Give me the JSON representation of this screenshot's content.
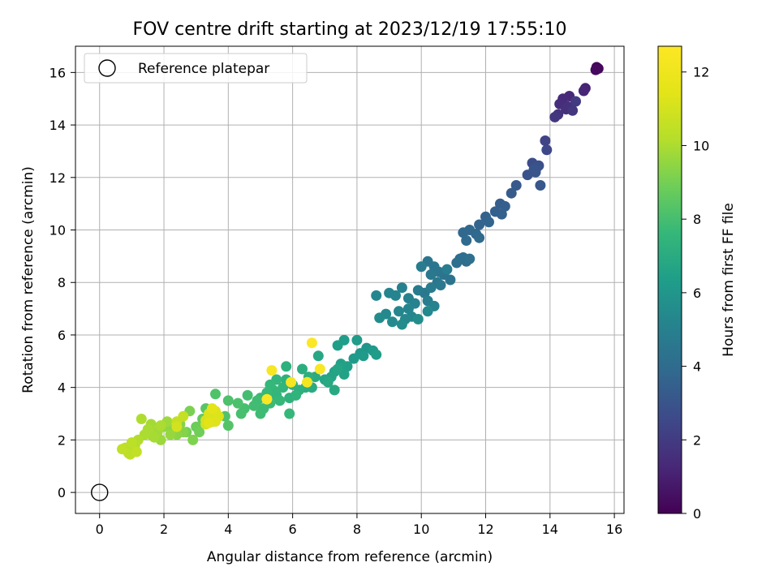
{
  "chart_data": {
    "type": "scatter",
    "title": "FOV centre drift starting at 2023/12/19 17:55:10",
    "xlabel": "Angular distance from reference (arcmin)",
    "ylabel": "Rotation from reference (arcmin)",
    "xlim": [
      -0.75,
      16.3
    ],
    "ylim": [
      -0.8,
      17.0
    ],
    "xticks": [
      0,
      2,
      4,
      6,
      8,
      10,
      12,
      14,
      16
    ],
    "yticks": [
      0,
      2,
      4,
      6,
      8,
      10,
      12,
      14,
      16
    ],
    "grid": true,
    "colormap": "viridis",
    "colorbar": {
      "label": "Hours from first FF file",
      "range": [
        0,
        12.7
      ],
      "ticks": [
        0,
        2,
        4,
        6,
        8,
        10,
        12
      ]
    },
    "reference": {
      "x": 0,
      "y": 0,
      "label": "Reference platepar"
    },
    "legend_location": "upper-left",
    "points": [
      [
        15.45,
        16.2,
        0.1
      ],
      [
        15.5,
        16.15,
        0.2
      ],
      [
        15.42,
        16.1,
        0.3
      ],
      [
        15.1,
        15.4,
        1.1
      ],
      [
        15.05,
        15.3,
        1.2
      ],
      [
        14.6,
        15.1,
        1.3
      ],
      [
        14.4,
        15.0,
        1.4
      ],
      [
        14.3,
        14.8,
        1.5
      ],
      [
        14.5,
        14.6,
        1.6
      ],
      [
        14.25,
        14.4,
        1.7
      ],
      [
        14.7,
        14.55,
        1.8
      ],
      [
        14.15,
        14.3,
        1.9
      ],
      [
        14.8,
        14.9,
        2.0
      ],
      [
        14.55,
        14.7,
        1.6
      ],
      [
        13.85,
        13.4,
        2.3
      ],
      [
        13.9,
        13.05,
        2.5
      ],
      [
        13.45,
        12.55,
        2.7
      ],
      [
        13.65,
        12.45,
        2.8
      ],
      [
        13.3,
        12.1,
        2.9
      ],
      [
        13.55,
        12.2,
        3.0
      ],
      [
        13.7,
        11.7,
        3.1
      ],
      [
        12.95,
        11.7,
        3.2
      ],
      [
        13.6,
        12.4,
        2.9
      ],
      [
        13.5,
        12.3,
        3.0
      ],
      [
        12.8,
        11.4,
        3.3
      ],
      [
        12.45,
        11.0,
        3.4
      ],
      [
        12.6,
        10.9,
        3.45
      ],
      [
        12.3,
        10.7,
        3.5
      ],
      [
        12.5,
        10.6,
        3.55
      ],
      [
        12.0,
        10.5,
        3.6
      ],
      [
        11.8,
        10.2,
        3.65
      ],
      [
        12.1,
        10.3,
        3.7
      ],
      [
        11.5,
        10.0,
        3.75
      ],
      [
        11.3,
        9.9,
        3.8
      ],
      [
        11.7,
        9.85,
        3.85
      ],
      [
        11.4,
        9.6,
        3.9
      ],
      [
        11.8,
        9.7,
        3.95
      ],
      [
        11.2,
        8.9,
        4.0
      ],
      [
        11.4,
        8.8,
        4.05
      ],
      [
        11.3,
        8.95,
        4.1
      ],
      [
        11.1,
        8.75,
        4.15
      ],
      [
        11.5,
        8.9,
        4.2
      ],
      [
        10.7,
        8.3,
        4.3
      ],
      [
        10.9,
        8.1,
        4.4
      ],
      [
        10.2,
        8.8,
        4.5
      ],
      [
        10.4,
        8.6,
        4.5
      ],
      [
        10.5,
        8.0,
        4.55
      ],
      [
        10.1,
        7.6,
        4.6
      ],
      [
        10.6,
        7.9,
        4.65
      ],
      [
        9.9,
        7.7,
        4.7
      ],
      [
        10.3,
        7.8,
        4.75
      ],
      [
        10.0,
        8.6,
        4.8
      ],
      [
        10.8,
        8.5,
        4.85
      ],
      [
        10.2,
        7.3,
        4.9
      ],
      [
        9.6,
        7.4,
        5.0
      ],
      [
        9.4,
        7.8,
        5.05
      ],
      [
        9.8,
        7.2,
        5.1
      ],
      [
        9.2,
        7.5,
        5.15
      ],
      [
        9.0,
        7.6,
        5.2
      ],
      [
        9.3,
        6.9,
        5.25
      ],
      [
        9.7,
        6.7,
        5.3
      ],
      [
        9.5,
        6.6,
        5.35
      ],
      [
        8.9,
        6.8,
        5.4
      ],
      [
        9.1,
        6.5,
        5.45
      ],
      [
        8.7,
        6.65,
        5.5
      ],
      [
        9.4,
        6.4,
        5.55
      ],
      [
        9.9,
        6.6,
        5.6
      ],
      [
        10.2,
        6.9,
        5.4
      ],
      [
        10.4,
        7.1,
        5.1
      ],
      [
        8.6,
        7.5,
        5.3
      ],
      [
        10.3,
        8.3,
        4.6
      ],
      [
        10.55,
        8.4,
        4.5
      ],
      [
        9.6,
        7.0,
        5.2
      ],
      [
        8.3,
        5.5,
        6.0
      ],
      [
        8.1,
        5.3,
        6.1
      ],
      [
        8.5,
        5.4,
        6.15
      ],
      [
        7.9,
        5.1,
        6.2
      ],
      [
        8.0,
        5.8,
        6.25
      ],
      [
        8.6,
        5.25,
        6.3
      ],
      [
        7.6,
        5.8,
        6.35
      ],
      [
        7.4,
        5.6,
        6.4
      ],
      [
        7.7,
        4.8,
        6.45
      ],
      [
        7.5,
        4.9,
        6.5
      ],
      [
        7.3,
        4.6,
        6.55
      ],
      [
        7.6,
        4.5,
        6.6
      ],
      [
        7.2,
        4.4,
        6.65
      ],
      [
        7.4,
        4.7,
        6.7
      ],
      [
        7.0,
        4.3,
        6.75
      ],
      [
        6.8,
        5.2,
        6.8
      ],
      [
        7.1,
        4.2,
        6.85
      ],
      [
        7.3,
        3.9,
        6.9
      ],
      [
        6.7,
        4.4,
        6.95
      ],
      [
        8.2,
        5.2,
        6.2
      ],
      [
        6.6,
        4.0,
        7.0
      ],
      [
        6.3,
        4.7,
        7.1
      ],
      [
        6.5,
        4.4,
        7.15
      ],
      [
        6.2,
        3.9,
        7.2
      ],
      [
        6.0,
        4.1,
        7.25
      ],
      [
        5.8,
        4.3,
        7.3
      ],
      [
        5.9,
        3.6,
        7.35
      ],
      [
        6.1,
        3.7,
        7.4
      ],
      [
        5.7,
        4.0,
        7.45
      ],
      [
        5.5,
        4.3,
        7.5
      ],
      [
        5.4,
        3.9,
        7.55
      ],
      [
        5.6,
        3.5,
        7.6
      ],
      [
        5.2,
        3.8,
        7.65
      ],
      [
        5.0,
        3.6,
        7.7
      ],
      [
        5.3,
        3.4,
        7.75
      ],
      [
        5.1,
        3.2,
        7.8
      ],
      [
        4.9,
        3.5,
        7.85
      ],
      [
        4.8,
        3.3,
        7.9
      ],
      [
        4.6,
        3.7,
        7.95
      ],
      [
        4.5,
        3.2,
        8.0
      ],
      [
        4.4,
        3.0,
        8.05
      ],
      [
        4.3,
        3.4,
        8.1
      ],
      [
        4.0,
        3.5,
        8.15
      ],
      [
        3.6,
        3.75,
        8.2
      ],
      [
        3.9,
        2.9,
        8.25
      ],
      [
        4.0,
        2.55,
        8.3
      ],
      [
        5.8,
        4.8,
        7.3
      ],
      [
        5.9,
        3.0,
        7.6
      ],
      [
        5.0,
        3.0,
        7.8
      ],
      [
        6.4,
        4.0,
        7.1
      ],
      [
        5.5,
        3.7,
        7.5
      ],
      [
        5.3,
        4.1,
        7.6
      ],
      [
        3.3,
        3.2,
        8.4
      ],
      [
        3.4,
        3.0,
        8.5
      ],
      [
        3.2,
        2.8,
        8.6
      ],
      [
        3.5,
        2.7,
        8.7
      ],
      [
        3.0,
        2.5,
        8.8
      ],
      [
        3.1,
        2.3,
        8.9
      ],
      [
        2.7,
        2.3,
        9.0
      ],
      [
        2.8,
        3.1,
        9.1
      ],
      [
        2.9,
        2.0,
        9.2
      ],
      [
        2.5,
        2.6,
        9.3
      ],
      [
        2.3,
        2.4,
        9.4
      ],
      [
        2.0,
        2.5,
        9.5
      ],
      [
        2.2,
        2.2,
        9.6
      ],
      [
        1.9,
        2.0,
        9.7
      ],
      [
        2.1,
        2.7,
        9.75
      ],
      [
        1.8,
        2.3,
        9.8
      ],
      [
        1.6,
        2.6,
        9.85
      ],
      [
        1.7,
        2.1,
        9.9
      ],
      [
        1.5,
        2.4,
        9.95
      ],
      [
        1.4,
        2.2,
        10.0
      ],
      [
        1.3,
        2.8,
        10.05
      ],
      [
        1.2,
        2.0,
        10.1
      ],
      [
        1.1,
        1.8,
        10.15
      ],
      [
        1.0,
        1.6,
        10.2
      ],
      [
        0.9,
        1.5,
        10.25
      ],
      [
        0.8,
        1.7,
        10.3
      ],
      [
        1.0,
        1.9,
        10.35
      ],
      [
        0.95,
        1.45,
        10.4
      ],
      [
        0.7,
        1.65,
        10.45
      ],
      [
        1.15,
        1.55,
        10.5
      ],
      [
        1.9,
        2.55,
        10.0
      ],
      [
        2.4,
        2.2,
        9.4
      ],
      [
        1.6,
        2.2,
        9.9
      ],
      [
        2.6,
        2.9,
        10.6
      ],
      [
        2.4,
        2.7,
        10.6
      ],
      [
        2.6,
        2.3,
        9.3
      ],
      [
        3.3,
        2.6,
        11.0
      ],
      [
        3.5,
        2.8,
        11.1
      ],
      [
        3.4,
        3.0,
        11.2
      ],
      [
        3.6,
        3.1,
        11.3
      ],
      [
        3.7,
        2.9,
        11.2
      ],
      [
        3.3,
        2.75,
        11.1
      ],
      [
        3.4,
        2.65,
        11.4
      ],
      [
        3.5,
        3.2,
        11.5
      ],
      [
        3.6,
        2.7,
        11.3
      ],
      [
        2.4,
        2.5,
        11.0
      ],
      [
        5.2,
        3.55,
        12.5
      ],
      [
        5.35,
        4.65,
        12.4
      ],
      [
        5.95,
        4.2,
        12.3
      ],
      [
        6.45,
        4.2,
        12.2
      ],
      [
        6.6,
        5.7,
        12.6
      ],
      [
        6.85,
        4.7,
        12.5
      ]
    ]
  }
}
